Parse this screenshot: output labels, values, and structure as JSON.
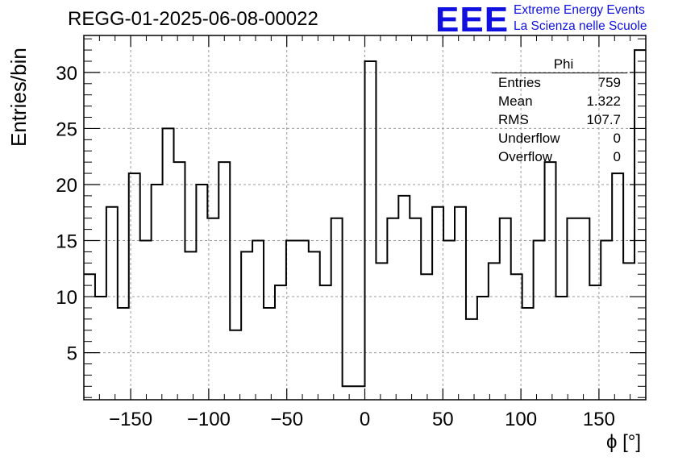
{
  "title": "REGG-01-2025-06-08-00022",
  "logo": {
    "mark": "EEE",
    "line1": "Extreme Energy Events",
    "line2": "La Scienza nelle Scuole",
    "color": "#1010e0"
  },
  "stats_box": {
    "name": "Phi",
    "rows": [
      {
        "label": "Entries",
        "value": "759"
      },
      {
        "label": "Mean",
        "value": "1.322"
      },
      {
        "label": "RMS",
        "value": "107.7"
      },
      {
        "label": "Underflow",
        "value": "0"
      },
      {
        "label": "Overflow",
        "value": "0"
      }
    ]
  },
  "chart_data": {
    "type": "bar",
    "style": "step-histogram",
    "title": "REGG-01-2025-06-08-00022",
    "xlabel": "ϕ [°]",
    "ylabel": "Entries/bin",
    "xlim": [
      -180,
      180
    ],
    "ylim": [
      0.8,
      33.3
    ],
    "bin_width": 7.2,
    "bin_edges_start": -180,
    "values": [
      12,
      10,
      18,
      9,
      21,
      15,
      20,
      25,
      22,
      14,
      20,
      17,
      22,
      7,
      14,
      15,
      9,
      11,
      15,
      15,
      14,
      11,
      17,
      2,
      2,
      31,
      13,
      17,
      19,
      17,
      12,
      18,
      15,
      18,
      8,
      10,
      13,
      17,
      12,
      9,
      15,
      22,
      10,
      17,
      17,
      11,
      15,
      21,
      13,
      32
    ],
    "xticks": [
      -150,
      -100,
      -50,
      0,
      50,
      100,
      150
    ],
    "xtick_labels": [
      "−150",
      "−100",
      "−50",
      "0",
      "50",
      "100",
      "150"
    ],
    "yticks": [
      5,
      10,
      15,
      20,
      25,
      30
    ],
    "ytick_labels": [
      "5",
      "10",
      "15",
      "20",
      "25",
      "30"
    ],
    "grid": true,
    "line_color": "#000000"
  }
}
